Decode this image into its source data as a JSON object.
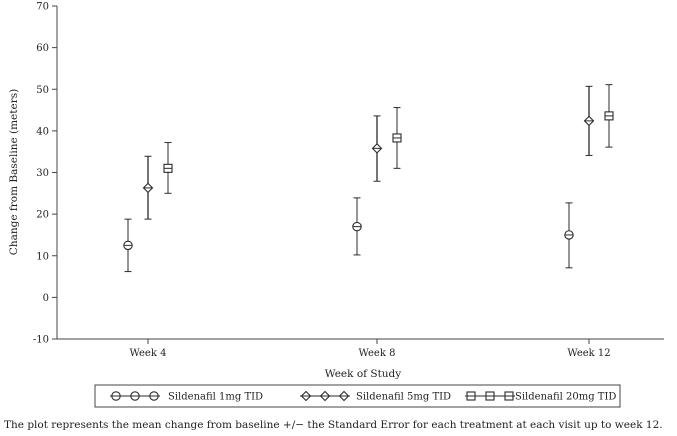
{
  "chart_data": {
    "type": "scatter",
    "ylabel": "Change from Baseline (meters)",
    "xlabel": "Week of Study",
    "categories": [
      "Week 4",
      "Week 8",
      "Week 12"
    ],
    "ylim": [
      -10,
      70
    ],
    "yticks": [
      -10,
      0,
      10,
      20,
      30,
      40,
      50,
      60,
      70
    ],
    "grid": false,
    "legend_position": "bottom",
    "series": [
      {
        "name": "Sildenafil 1mg TID",
        "marker": "circle",
        "values": [
          12.5,
          17.0,
          15.0
        ],
        "lower": [
          6.2,
          10.2,
          7.1
        ],
        "upper": [
          18.8,
          23.9,
          22.7
        ]
      },
      {
        "name": "Sildenafil 5mg TID",
        "marker": "diamond",
        "values": [
          26.3,
          35.8,
          42.4
        ],
        "lower": [
          18.8,
          27.9,
          34.1
        ],
        "upper": [
          33.9,
          43.6,
          50.7
        ]
      },
      {
        "name": "Sildenafil 20mg TID",
        "marker": "square",
        "values": [
          31.0,
          38.3,
          43.6
        ],
        "lower": [
          25.0,
          31.0,
          36.1
        ],
        "upper": [
          37.2,
          45.6,
          51.1
        ]
      }
    ]
  },
  "caption": "The plot represents the mean change from baseline +/− the Standard Error for each treatment at each visit up to week 12."
}
